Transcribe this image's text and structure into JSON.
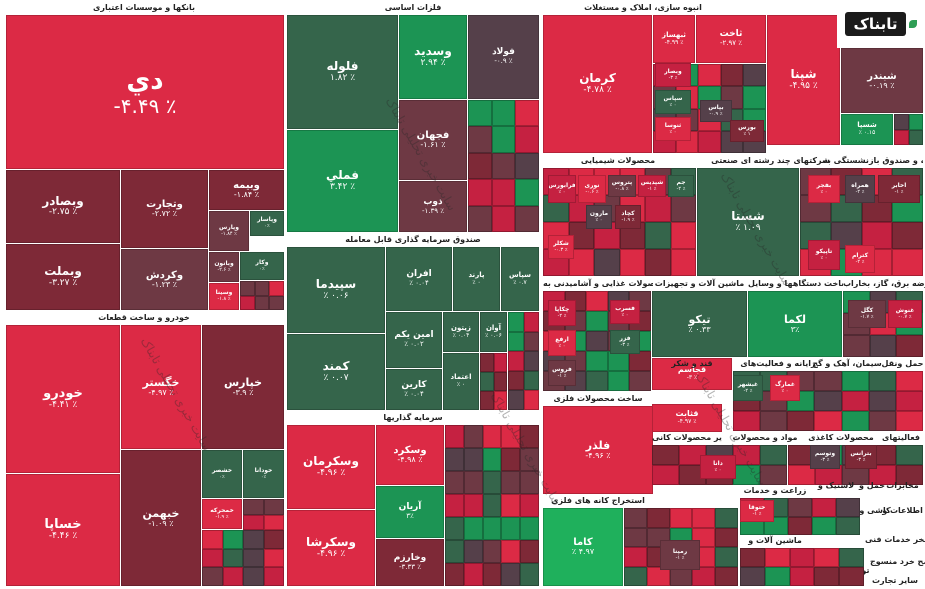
{
  "colors": {
    "red_strong": "#dc2a45",
    "red": "#c52141",
    "red_dark": "#7e2937",
    "red_muted": "#6e3944",
    "gray": "#55404a",
    "green_dark": "#35654b",
    "green": "#1c9454",
    "green_bright": "#1fb05c"
  },
  "logo": {
    "text": "تابناک"
  },
  "watermark": "سایت خبری تحلیلی تابناک",
  "chart_data": {
    "type": "treemap",
    "title": "",
    "sectors": [
      {
        "name": "بانکها و موسسات اعتباری",
        "symbols": [
          {
            "symbol": "دي",
            "change": "-۴.۴۹ ٪",
            "color": "red_strong"
          },
          {
            "symbol": "وبصادر",
            "change": "-۲.۷۵ ٪",
            "color": "red_dark"
          },
          {
            "symbol": "وتجارت",
            "change": "-۲.۷۲ ٪",
            "color": "red_dark"
          },
          {
            "symbol": "وبيمه",
            "change": "-۱.۸۴ ٪",
            "color": "red_dark"
          },
          {
            "symbol": "وبملت",
            "change": "-۳.۲۷ ٪",
            "color": "red_dark"
          },
          {
            "symbol": "وکردش",
            "change": "-۱.۲۳ ٪",
            "color": "red_muted"
          },
          {
            "symbol": "وپارس",
            "change": "-۱.۸۴ ٪",
            "color": "red_muted"
          },
          {
            "symbol": "وپاسار",
            "change": "۰٪",
            "color": "green_dark"
          },
          {
            "symbol": "وبانون",
            "change": "-۲.۶ ٪",
            "color": "red_muted"
          },
          {
            "symbol": "وکار",
            "change": "۰٪",
            "color": "green_dark"
          },
          {
            "symbol": "وسینا",
            "change": "-۱.۸ ٪",
            "color": "red_strong"
          }
        ]
      },
      {
        "name": "خودرو و ساخت قطعات",
        "symbols": [
          {
            "symbol": "خودرو",
            "change": "-۴.۴۱ ٪",
            "color": "red_strong"
          },
          {
            "symbol": "خگستر",
            "change": "-۴.۹۷ ٪",
            "color": "red_strong"
          },
          {
            "symbol": "خپارس",
            "change": "-۳.۹ ٪",
            "color": "red_dark"
          },
          {
            "symbol": "خساپا",
            "change": "-۴.۴۶ ٪",
            "color": "red_strong"
          },
          {
            "symbol": "خبهمن",
            "change": "-۱.۰۹ ٪",
            "color": "red_dark"
          },
          {
            "symbol": "خشصر",
            "change": "۰٪",
            "color": "green_dark"
          },
          {
            "symbol": "خودانا",
            "change": "۰٪",
            "color": "green_dark"
          },
          {
            "symbol": "خمحرکه",
            "change": "-۱.۹ ٪",
            "color": "red_strong"
          }
        ]
      },
      {
        "name": "فلزات اساسی",
        "symbols": [
          {
            "symbol": "فولاد",
            "change": "-۰.۹ ٪",
            "color": "gray"
          },
          {
            "symbol": "فلوله",
            "change": "۱.۸۲ ٪",
            "color": "green_dark"
          },
          {
            "symbol": "وسديد",
            "change": "۲.۹۴ ٪",
            "color": "green"
          },
          {
            "symbol": "فملي",
            "change": "۳.۴۲ ٪",
            "color": "green"
          },
          {
            "symbol": "فجهان",
            "change": "-۱.۶۱ ٪",
            "color": "red_muted"
          },
          {
            "symbol": "ذوب",
            "change": "-۱.۳۹ ٪",
            "color": "red_muted"
          }
        ]
      },
      {
        "name": "صندوق سرمایه گذاری قابل معامله",
        "symbols": [
          {
            "symbol": "سپيدما",
            "change": "٪ ۰.۰۶",
            "color": "green_dark"
          },
          {
            "symbol": "افران",
            "change": "٪ ۰.۰۴",
            "color": "green_dark"
          },
          {
            "symbol": "پارند",
            "change": "٪ ۰",
            "color": "green_dark"
          },
          {
            "symbol": "سپاس",
            "change": "٪ ۰.۷",
            "color": "green_dark"
          },
          {
            "symbol": "كمند",
            "change": "٪ ۰.۰۷",
            "color": "green_dark"
          },
          {
            "symbol": "امين يكم",
            "change": "٪ ۰.۰۲",
            "color": "green_dark"
          },
          {
            "symbol": "زيتون",
            "change": "٪ ۰.۰۴",
            "color": "green_dark"
          },
          {
            "symbol": "آوان",
            "change": "٪ ۰.۰۶",
            "color": "green_dark"
          },
          {
            "symbol": "كارين",
            "change": "٪ ۰.۰۴",
            "color": "green_dark"
          },
          {
            "symbol": "اعتماد",
            "change": "٪ ۰",
            "color": "green_dark"
          }
        ]
      },
      {
        "name": "سرمایه گذاریها",
        "symbols": [
          {
            "symbol": "وسکرمان",
            "change": "-۴.۹۶ ٪",
            "color": "red_strong"
          },
          {
            "symbol": "وسکرد",
            "change": "-۴.۹۸ ٪",
            "color": "red_strong"
          },
          {
            "symbol": "وسكرشا",
            "change": "-۴.۹۶ ٪",
            "color": "red_strong"
          },
          {
            "symbol": "آريان",
            "change": "۳٪",
            "color": "green"
          },
          {
            "symbol": "وخارزم",
            "change": "-۳.۳۳ ٪",
            "color": "red_dark"
          }
        ]
      },
      {
        "name": "انبوه سازی، املاک و مستغلات",
        "symbols": [
          {
            "symbol": "كرمان",
            "change": "-۴.۷۸ ٪",
            "color": "red_strong"
          },
          {
            "symbol": "ثاخت",
            "change": "-۲.۹۷ ٪",
            "color": "red_strong"
          },
          {
            "symbol": "ثبهساز",
            "change": "-۴.۹۹ ٪",
            "color": "red_strong"
          },
          {
            "symbol": "ثشرق",
            "change": "-۳ ٪",
            "color": "red_strong"
          }
        ]
      },
      {
        "name": "شرکتهای چند رشته ای صنعتی",
        "symbols": [
          {
            "symbol": "شپنا",
            "change": "-۴.۹۵ ٪",
            "color": "red_strong"
          },
          {
            "symbol": "شبندر",
            "change": "-۰.۱۹ ٪",
            "color": "red_muted"
          },
          {
            "symbol": "شسپا",
            "change": "٪ ۰.۱۵",
            "color": "green"
          }
        ]
      },
      {
        "name": "محصولات شیمیایی",
        "symbols": [
          {
            "symbol": "شستا",
            "change": "٪ ۱.۰۹",
            "color": "green_dark"
          },
          {
            "symbol": "وپترو",
            "change": "-۲ ٪",
            "color": "red_strong"
          },
          {
            "symbol": "فارس",
            "change": "-۰.۷",
            "color": "red_strong"
          }
        ]
      },
      {
        "name": "ماشین آلات و تجهیزات",
        "symbols": [
          {
            "symbol": "تيكو",
            "change": "٪ ۰.۳۳",
            "color": "green_dark"
          },
          {
            "symbol": "لكما",
            "change": "۳٪",
            "color": "green"
          }
        ]
      },
      {
        "name": "ساخت محصولات فلزی",
        "symbols": [
          {
            "symbol": "فلذر",
            "change": "-۴.۹۶ ٪",
            "color": "red_strong"
          },
          {
            "symbol": "قجاسم",
            "change": "-۳ ٪",
            "color": "red_strong"
          },
          {
            "symbol": "قثابت",
            "change": "-۴.۹۷ ٪",
            "color": "red_strong"
          },
          {
            "symbol": "كاما",
            "change": "٪ ۴.۹۷",
            "color": "green_bright"
          }
        ]
      }
    ],
    "sector_labels": [
      "بانکها و موسسات اعتباری",
      "خودرو و ساخت قطعات",
      "فلزات اساسی",
      "صندوق سرمایه گذاری قابل معامله",
      "سرمایه گذاریها",
      "انبوه سازی، املاک و مستغلات",
      "شرکتهای چند رشته ای صنعتی",
      "بیمه و صندوق بازنشستگی به",
      "محصولات شیمیایی",
      "محصولات غذایی و آشامیدنی به",
      "ماشین آلات و تجهیزات",
      "ساخت دستگاهها و وسایل",
      "عرضه برق، گاز، بخاراب",
      "ساخت محصولات فلزی",
      "قند و شکر",
      "رایانه و فعالیت‌های",
      "سیمان، آهک و گچ",
      "حمل ونقل",
      "سایر محصولات کانی",
      "مواد و محصولات",
      "محصولات کاغذی",
      "فعالیتهای",
      "زراعت و خدمات",
      "استخراج کانه های فلزی",
      "سایر واسطه گریهای",
      "ماشین آلات و",
      "استخراج",
      "لاستیک و",
      "حمل و",
      "مخابرات",
      "کاشی و",
      "اطلاعات و",
      "استخر خدمات فنی",
      "مح خرد منسوج",
      "تولید",
      "سایر تجارت"
    ],
    "small_tiles": [
      [
        "وبصار",
        "-۳ ٪"
      ],
      [
        "سپاس",
        "٪ ۰"
      ],
      [
        "ثنوسا",
        "٪ ۰"
      ],
      [
        "بپاس",
        "-۰.۹ ٪"
      ],
      [
        "بورس",
        "٪ ۱"
      ],
      [
        "فرابورس",
        "٪ ۰"
      ],
      [
        "نوری",
        "-۰.۶ ٪"
      ],
      [
        "پتروس",
        "-۰.۸ ٪"
      ],
      [
        "شپدیس",
        "-۱ ٪"
      ],
      [
        "جم",
        "-۲ ٪"
      ],
      [
        "شكلر",
        "-۰.۳ ٪"
      ],
      [
        "مارون",
        "٪ ۰"
      ],
      [
        "كچاد",
        "-۱.۹ ٪"
      ],
      [
        "چكاپا",
        "-۲ ٪"
      ],
      [
        "ارفع",
        "٪ ۰"
      ],
      [
        "فروس",
        "-۱ ٪"
      ],
      [
        "فسرب",
        "٪ ۰"
      ],
      [
        "فزر",
        "-۳ ٪"
      ],
      [
        "بفجر",
        "٪ ۰"
      ],
      [
        "همراه",
        "-۲ ٪"
      ],
      [
        "اخابر",
        "-۱ ٪"
      ],
      [
        "تاپیکو",
        "٪ ۰"
      ],
      [
        "كترام",
        "-۲ ٪"
      ],
      [
        "كگل",
        "-۱.۷ ٪"
      ],
      [
        "غنوش",
        "-۰.۷ ٪"
      ],
      [
        "غبشهر",
        "-۲ ٪"
      ],
      [
        "غمارگ",
        "٪ ۰"
      ],
      [
        "وتوسم",
        "-۳ ٪"
      ],
      [
        "بترانس",
        "-۳ ٪"
      ],
      [
        "دانا",
        "٪ ۰"
      ],
      [
        "ختوقا",
        "-۱ ٪"
      ],
      [
        "رمپنا",
        "-۱ ٪"
      ]
    ]
  }
}
